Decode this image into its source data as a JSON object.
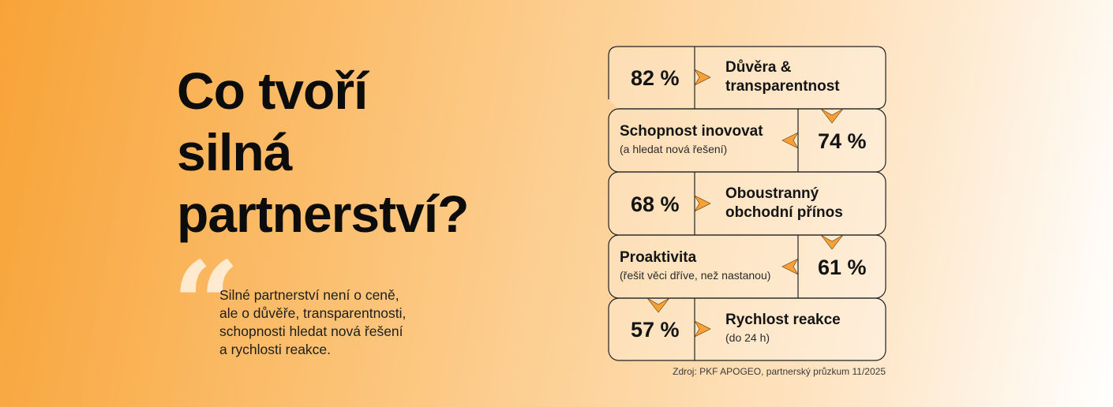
{
  "headline": [
    "Co tvoří",
    "silná",
    "partnerství?"
  ],
  "quote_lines": [
    "Silné partnerství není o ceně,",
    "ale o důvěře, transparentnosti,",
    "schopnosti hledat nová řešení",
    "a rychlosti reakce."
  ],
  "quote_mark_icon": "quotation-mark-icon",
  "accent_color": "#f6a035",
  "factors": [
    {
      "percent": "82 %",
      "value": 82,
      "title_lines": [
        "Důvěra &",
        "transparentnost"
      ],
      "sub": ""
    },
    {
      "percent": "74 %",
      "value": 74,
      "title_lines": [
        "Schopnost inovovat"
      ],
      "sub": "(a hledat nová řešení)"
    },
    {
      "percent": "68 %",
      "value": 68,
      "title_lines": [
        "Oboustranný",
        "obchodní přínos"
      ],
      "sub": ""
    },
    {
      "percent": "61 %",
      "value": 61,
      "title_lines": [
        "Proaktivita"
      ],
      "sub": "(řešit věci dříve, než nastanou)"
    },
    {
      "percent": "57 %",
      "value": 57,
      "title_lines": [
        "Rychlost reakce"
      ],
      "sub": "(do 24 h)"
    }
  ],
  "source": "Zdroj: PKF APOGEO, partnerský průzkum 11/2025"
}
